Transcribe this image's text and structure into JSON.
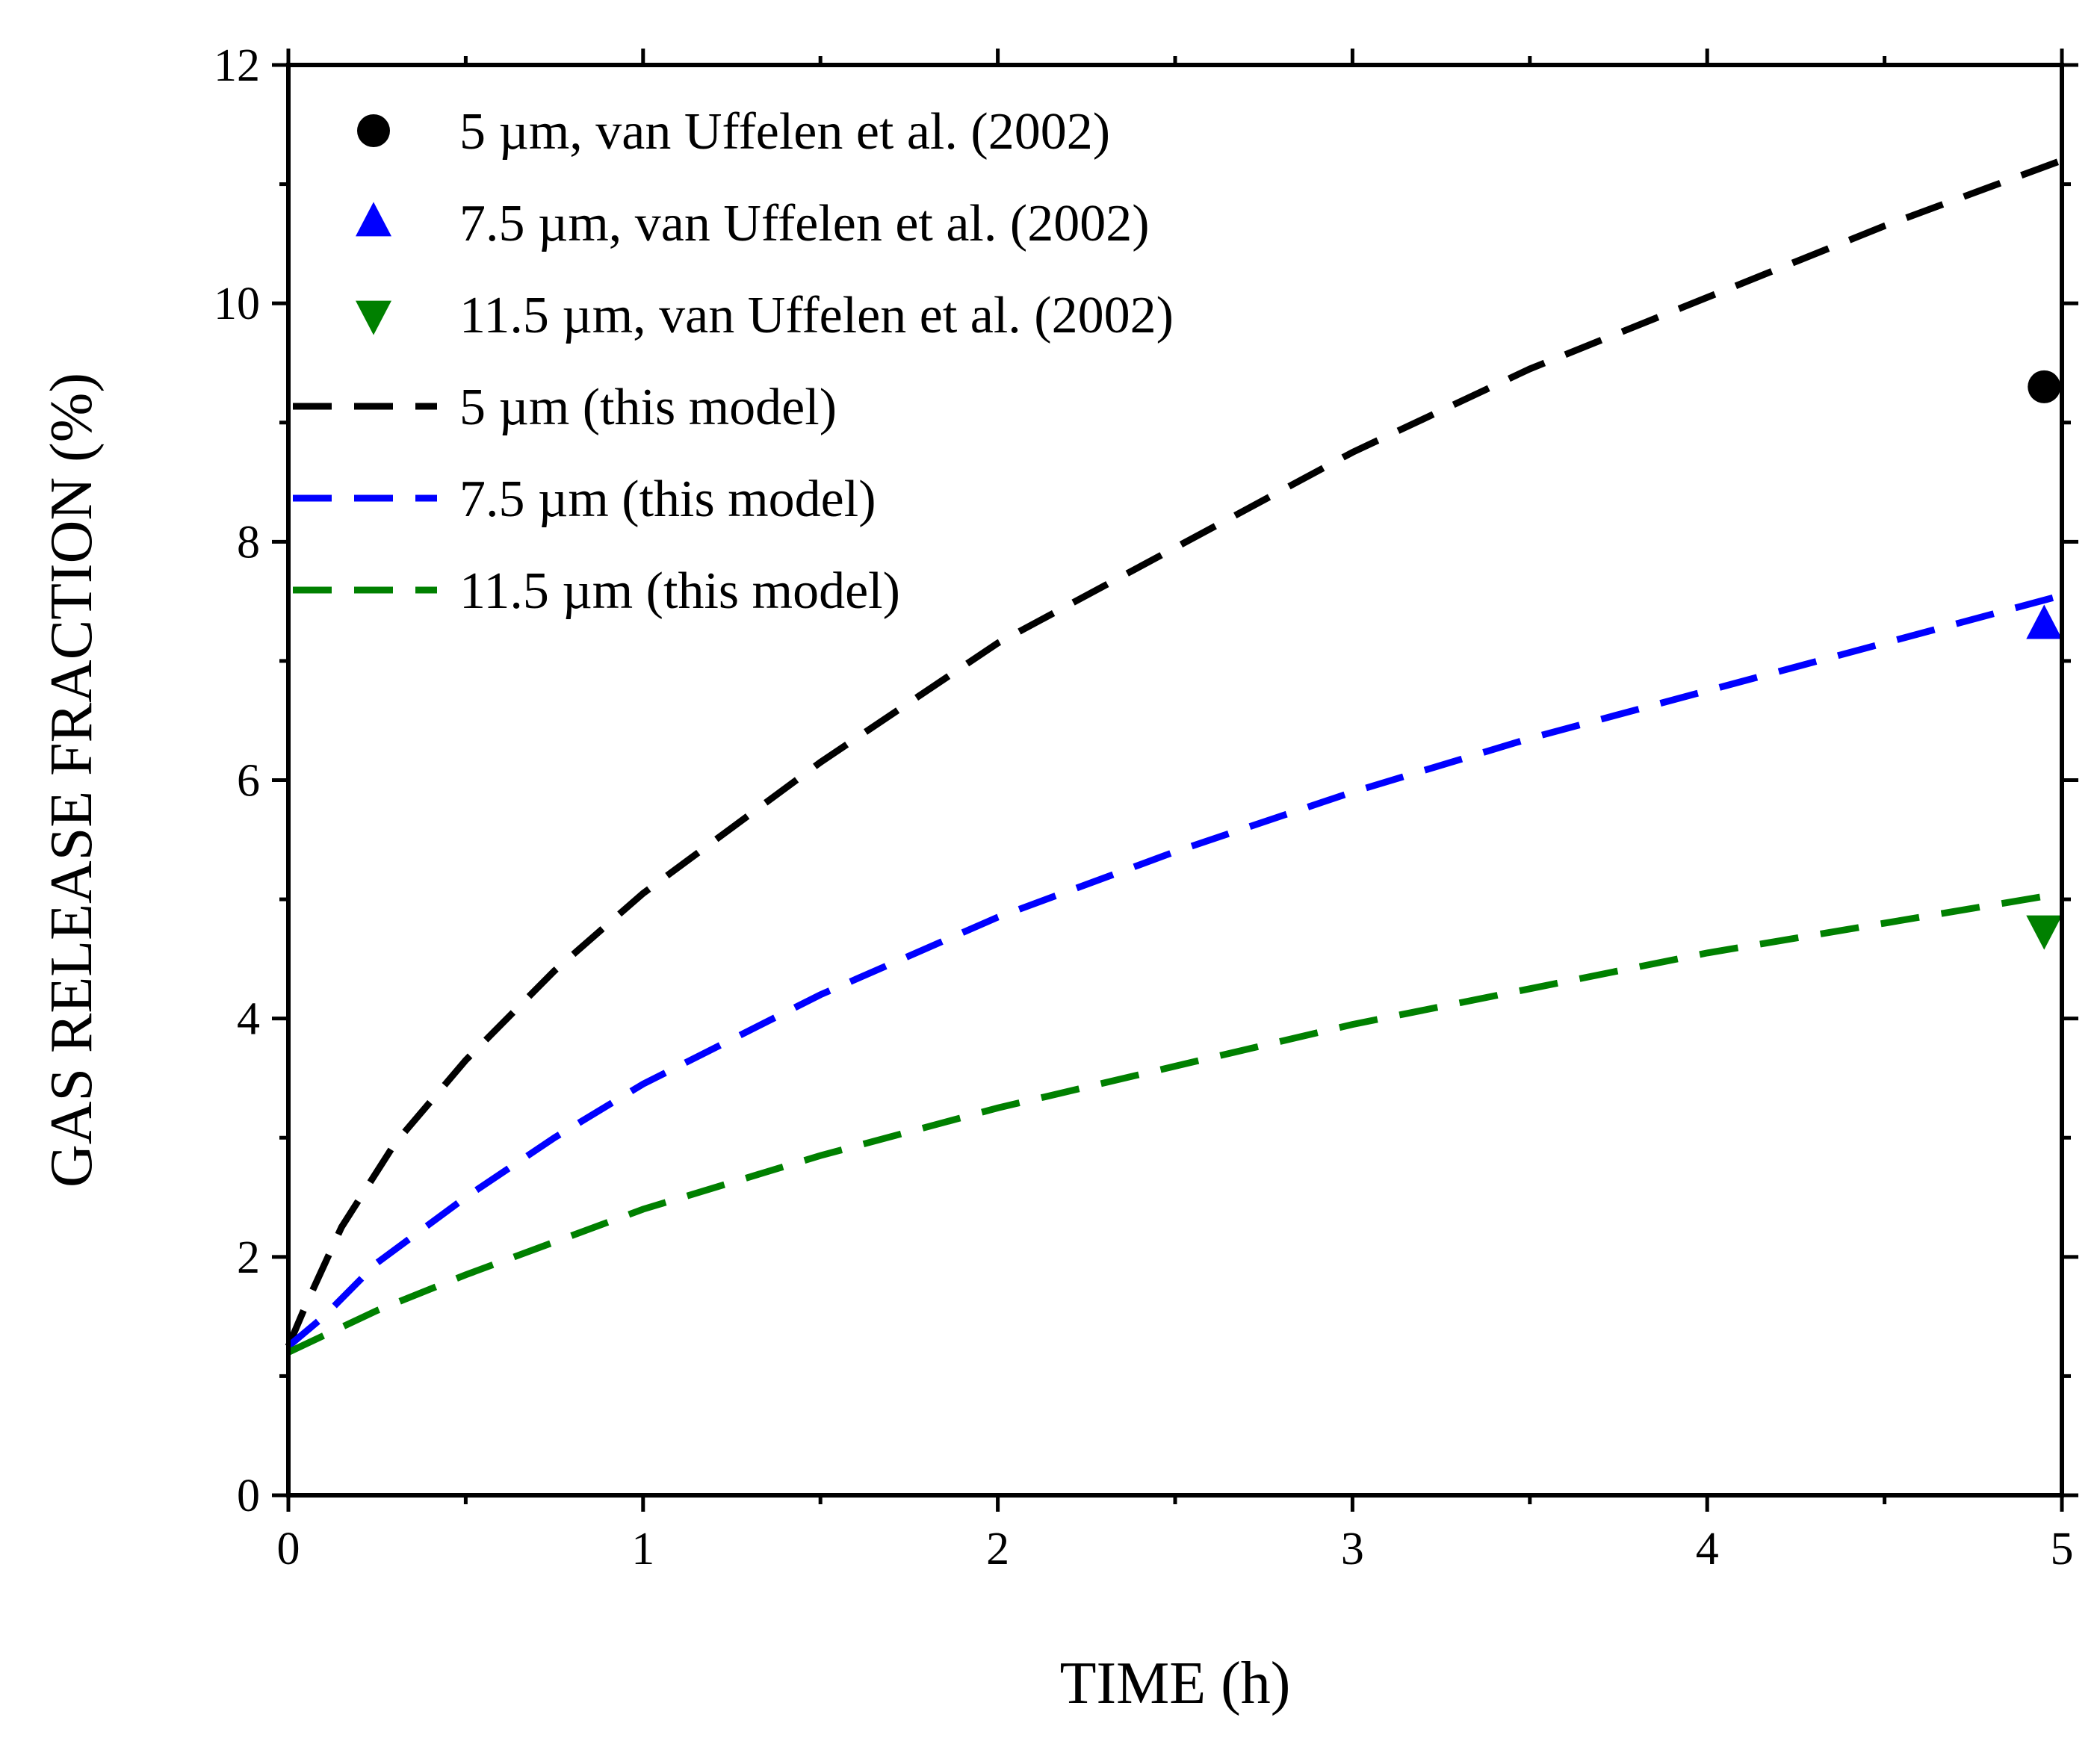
{
  "chart_data": {
    "type": "line",
    "title": "",
    "xlabel": "TIME (h)",
    "ylabel": "GAS RELEASE FRACTION (%)",
    "xlim": [
      0,
      5
    ],
    "ylim": [
      0,
      12
    ],
    "x_ticks": [
      0,
      1,
      2,
      3,
      4,
      5
    ],
    "y_ticks": [
      0,
      2,
      4,
      6,
      8,
      10,
      12
    ],
    "x_tick_labels": [
      "0",
      "1",
      "2",
      "3",
      "4",
      "5"
    ],
    "y_tick_labels": [
      "0",
      "2",
      "4",
      "6",
      "8",
      "10",
      "12"
    ],
    "grid": false,
    "legend_position": "top-left",
    "series": [
      {
        "name": "5 µm, van Uffelen et al. (2002)",
        "kind": "scatter",
        "marker": "circle",
        "color": "#000000",
        "points": [
          {
            "x": 4.95,
            "y": 9.3
          }
        ]
      },
      {
        "name": "7.5 µm, van Uffelen et al. (2002)",
        "kind": "scatter",
        "marker": "triangle-up",
        "color": "#0000ff",
        "points": [
          {
            "x": 4.95,
            "y": 7.3
          }
        ]
      },
      {
        "name": "11.5 µm, van Uffelen et al. (2002)",
        "kind": "scatter",
        "marker": "triangle-down",
        "color": "#008000",
        "points": [
          {
            "x": 4.95,
            "y": 4.75
          }
        ]
      },
      {
        "name": "5 µm (this model)",
        "kind": "line",
        "dash": true,
        "color": "#000000",
        "points": [
          {
            "x": 0.0,
            "y": 1.25
          },
          {
            "x": 0.05,
            "y": 1.6
          },
          {
            "x": 0.15,
            "y": 2.25
          },
          {
            "x": 0.3,
            "y": 2.95
          },
          {
            "x": 0.5,
            "y": 3.65
          },
          {
            "x": 0.75,
            "y": 4.4
          },
          {
            "x": 1.0,
            "y": 5.05
          },
          {
            "x": 1.5,
            "y": 6.15
          },
          {
            "x": 2.0,
            "y": 7.15
          },
          {
            "x": 2.5,
            "y": 7.95
          },
          {
            "x": 3.0,
            "y": 8.75
          },
          {
            "x": 3.5,
            "y": 9.45
          },
          {
            "x": 4.0,
            "y": 10.05
          },
          {
            "x": 4.5,
            "y": 10.65
          },
          {
            "x": 5.0,
            "y": 11.2
          }
        ]
      },
      {
        "name": "7.5 µm (this model)",
        "kind": "line",
        "dash": true,
        "color": "#0000ff",
        "points": [
          {
            "x": 0.0,
            "y": 1.25
          },
          {
            "x": 0.1,
            "y": 1.5
          },
          {
            "x": 0.25,
            "y": 1.95
          },
          {
            "x": 0.5,
            "y": 2.5
          },
          {
            "x": 0.75,
            "y": 3.0
          },
          {
            "x": 1.0,
            "y": 3.45
          },
          {
            "x": 1.5,
            "y": 4.2
          },
          {
            "x": 2.0,
            "y": 4.85
          },
          {
            "x": 2.5,
            "y": 5.4
          },
          {
            "x": 3.0,
            "y": 5.9
          },
          {
            "x": 3.5,
            "y": 6.35
          },
          {
            "x": 4.0,
            "y": 6.75
          },
          {
            "x": 4.5,
            "y": 7.15
          },
          {
            "x": 5.0,
            "y": 7.55
          }
        ]
      },
      {
        "name": "11.5 µm (this model)",
        "kind": "line",
        "dash": true,
        "color": "#008000",
        "points": [
          {
            "x": 0.0,
            "y": 1.2
          },
          {
            "x": 0.25,
            "y": 1.55
          },
          {
            "x": 0.5,
            "y": 1.85
          },
          {
            "x": 1.0,
            "y": 2.4
          },
          {
            "x": 1.5,
            "y": 2.85
          },
          {
            "x": 2.0,
            "y": 3.25
          },
          {
            "x": 2.5,
            "y": 3.6
          },
          {
            "x": 3.0,
            "y": 3.95
          },
          {
            "x": 3.5,
            "y": 4.25
          },
          {
            "x": 4.0,
            "y": 4.55
          },
          {
            "x": 4.5,
            "y": 4.8
          },
          {
            "x": 5.0,
            "y": 5.05
          }
        ]
      }
    ]
  }
}
